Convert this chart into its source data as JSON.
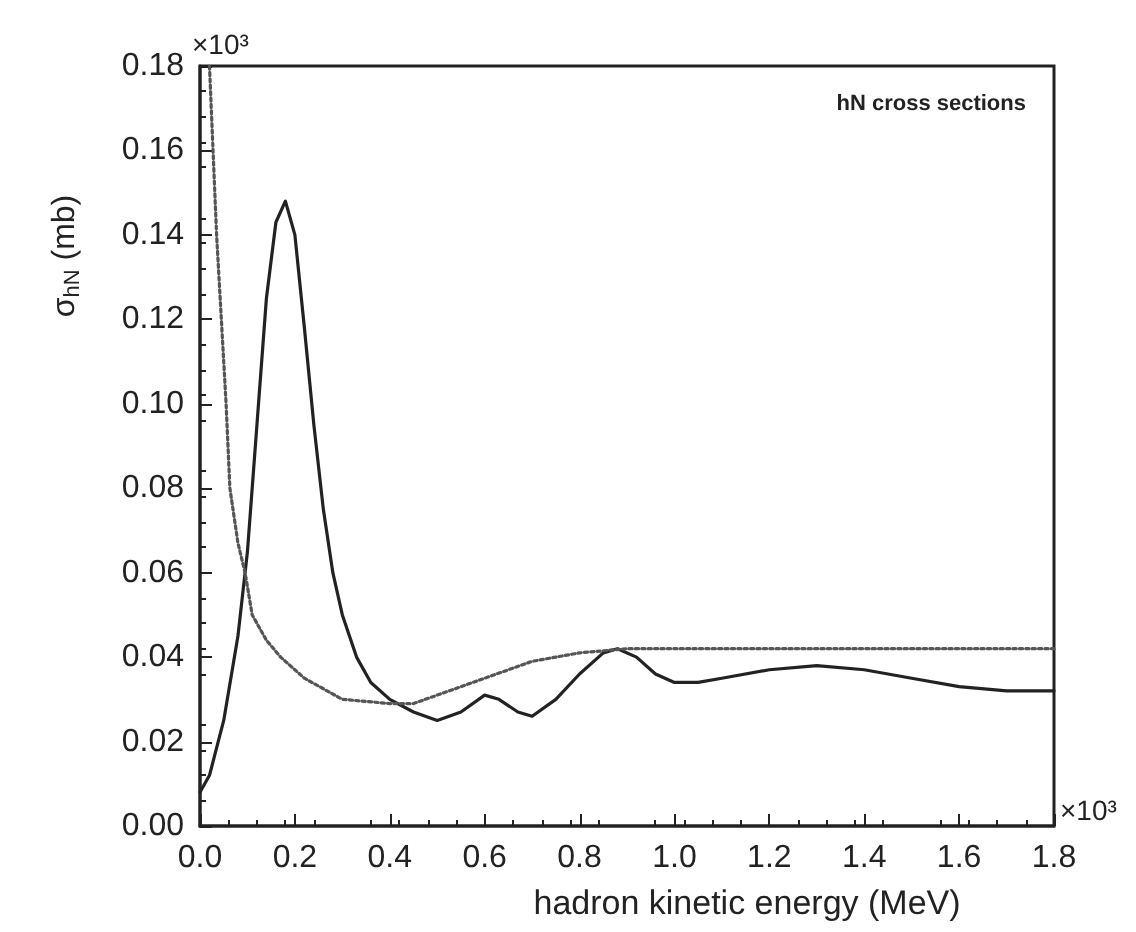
{
  "chart_data": {
    "type": "line",
    "xlabel": "hadron kinetic energy (MeV)",
    "ylabel": "σ$_{hN}$ (mb)",
    "annotations": [
      "hN cross sections",
      "×10³",
      "×10³"
    ],
    "xlim": [
      0,
      1.8
    ],
    "xticks": [
      {
        "value": 0,
        "label": "0.0"
      },
      {
        "value": 0.2,
        "label": "0.2"
      },
      {
        "value": 0.4,
        "label": "0.4"
      },
      {
        "value": 0.6,
        "label": "0.6"
      },
      {
        "value": 0.8,
        "label": "0.8"
      },
      {
        "value": 1,
        "label": "1.0"
      },
      {
        "value": 1.2,
        "label": "1.2"
      },
      {
        "value": 1.4,
        "label": "1.4"
      },
      {
        "value": 1.6,
        "label": "1.6"
      },
      {
        "value": 1.8,
        "label": "1.8"
      }
    ],
    "ylim": [
      0,
      0.18
    ],
    "yticks": [
      {
        "value": 0,
        "label": "0.00"
      },
      {
        "value": 0.02,
        "label": "0.02"
      },
      {
        "value": 0.04,
        "label": "0.04"
      },
      {
        "value": 0.06,
        "label": "0.06"
      },
      {
        "value": 0.08,
        "label": "0.08"
      },
      {
        "value": 0.1,
        "label": "0.10"
      },
      {
        "value": 0.12,
        "label": "0.12"
      },
      {
        "value": 0.14,
        "label": "0.14"
      },
      {
        "value": 0.16,
        "label": "0.16"
      },
      {
        "value": 0.18,
        "label": "0.18"
      }
    ],
    "grid": false,
    "marker": "none",
    "series": [
      {
        "color": "#222222",
        "line_style": "solid",
        "x": [
          0,
          0.02,
          0.05,
          0.08,
          0.1,
          0.12,
          0.14,
          0.16,
          0.18,
          0.2,
          0.22,
          0.24,
          0.26,
          0.28,
          0.3,
          0.33,
          0.36,
          0.4,
          0.45,
          0.5,
          0.55,
          0.6,
          0.63,
          0.67,
          0.7,
          0.75,
          0.8,
          0.85,
          0.88,
          0.92,
          0.96,
          1,
          1.05,
          1.1,
          1.2,
          1.3,
          1.4,
          1.5,
          1.6,
          1.7,
          1.8
        ],
        "values": [
          0.008,
          0.012,
          0.025,
          0.045,
          0.065,
          0.095,
          0.125,
          0.143,
          0.148,
          0.14,
          0.118,
          0.095,
          0.075,
          0.06,
          0.05,
          0.04,
          0.034,
          0.03,
          0.027,
          0.025,
          0.027,
          0.031,
          0.03,
          0.027,
          0.026,
          0.03,
          0.036,
          0.041,
          0.042,
          0.04,
          0.036,
          0.034,
          0.034,
          0.035,
          0.037,
          0.038,
          0.037,
          0.035,
          0.033,
          0.032,
          0.032
        ]
      },
      {
        "color": "#555555",
        "line_style": "dotted",
        "x": [
          0.02,
          0.035,
          0.045,
          0.055,
          0.063,
          0.08,
          0.095,
          0.11,
          0.14,
          0.17,
          0.22,
          0.3,
          0.4,
          0.45,
          0.5,
          0.6,
          0.7,
          0.8,
          0.9,
          1,
          1.4,
          1.8
        ],
        "values": [
          0.18,
          0.14,
          0.12,
          0.1,
          0.08,
          0.067,
          0.06,
          0.05,
          0.044,
          0.04,
          0.035,
          0.03,
          0.029,
          0.029,
          0.031,
          0.035,
          0.039,
          0.041,
          0.042,
          0.042,
          0.042,
          0.042
        ]
      }
    ]
  }
}
